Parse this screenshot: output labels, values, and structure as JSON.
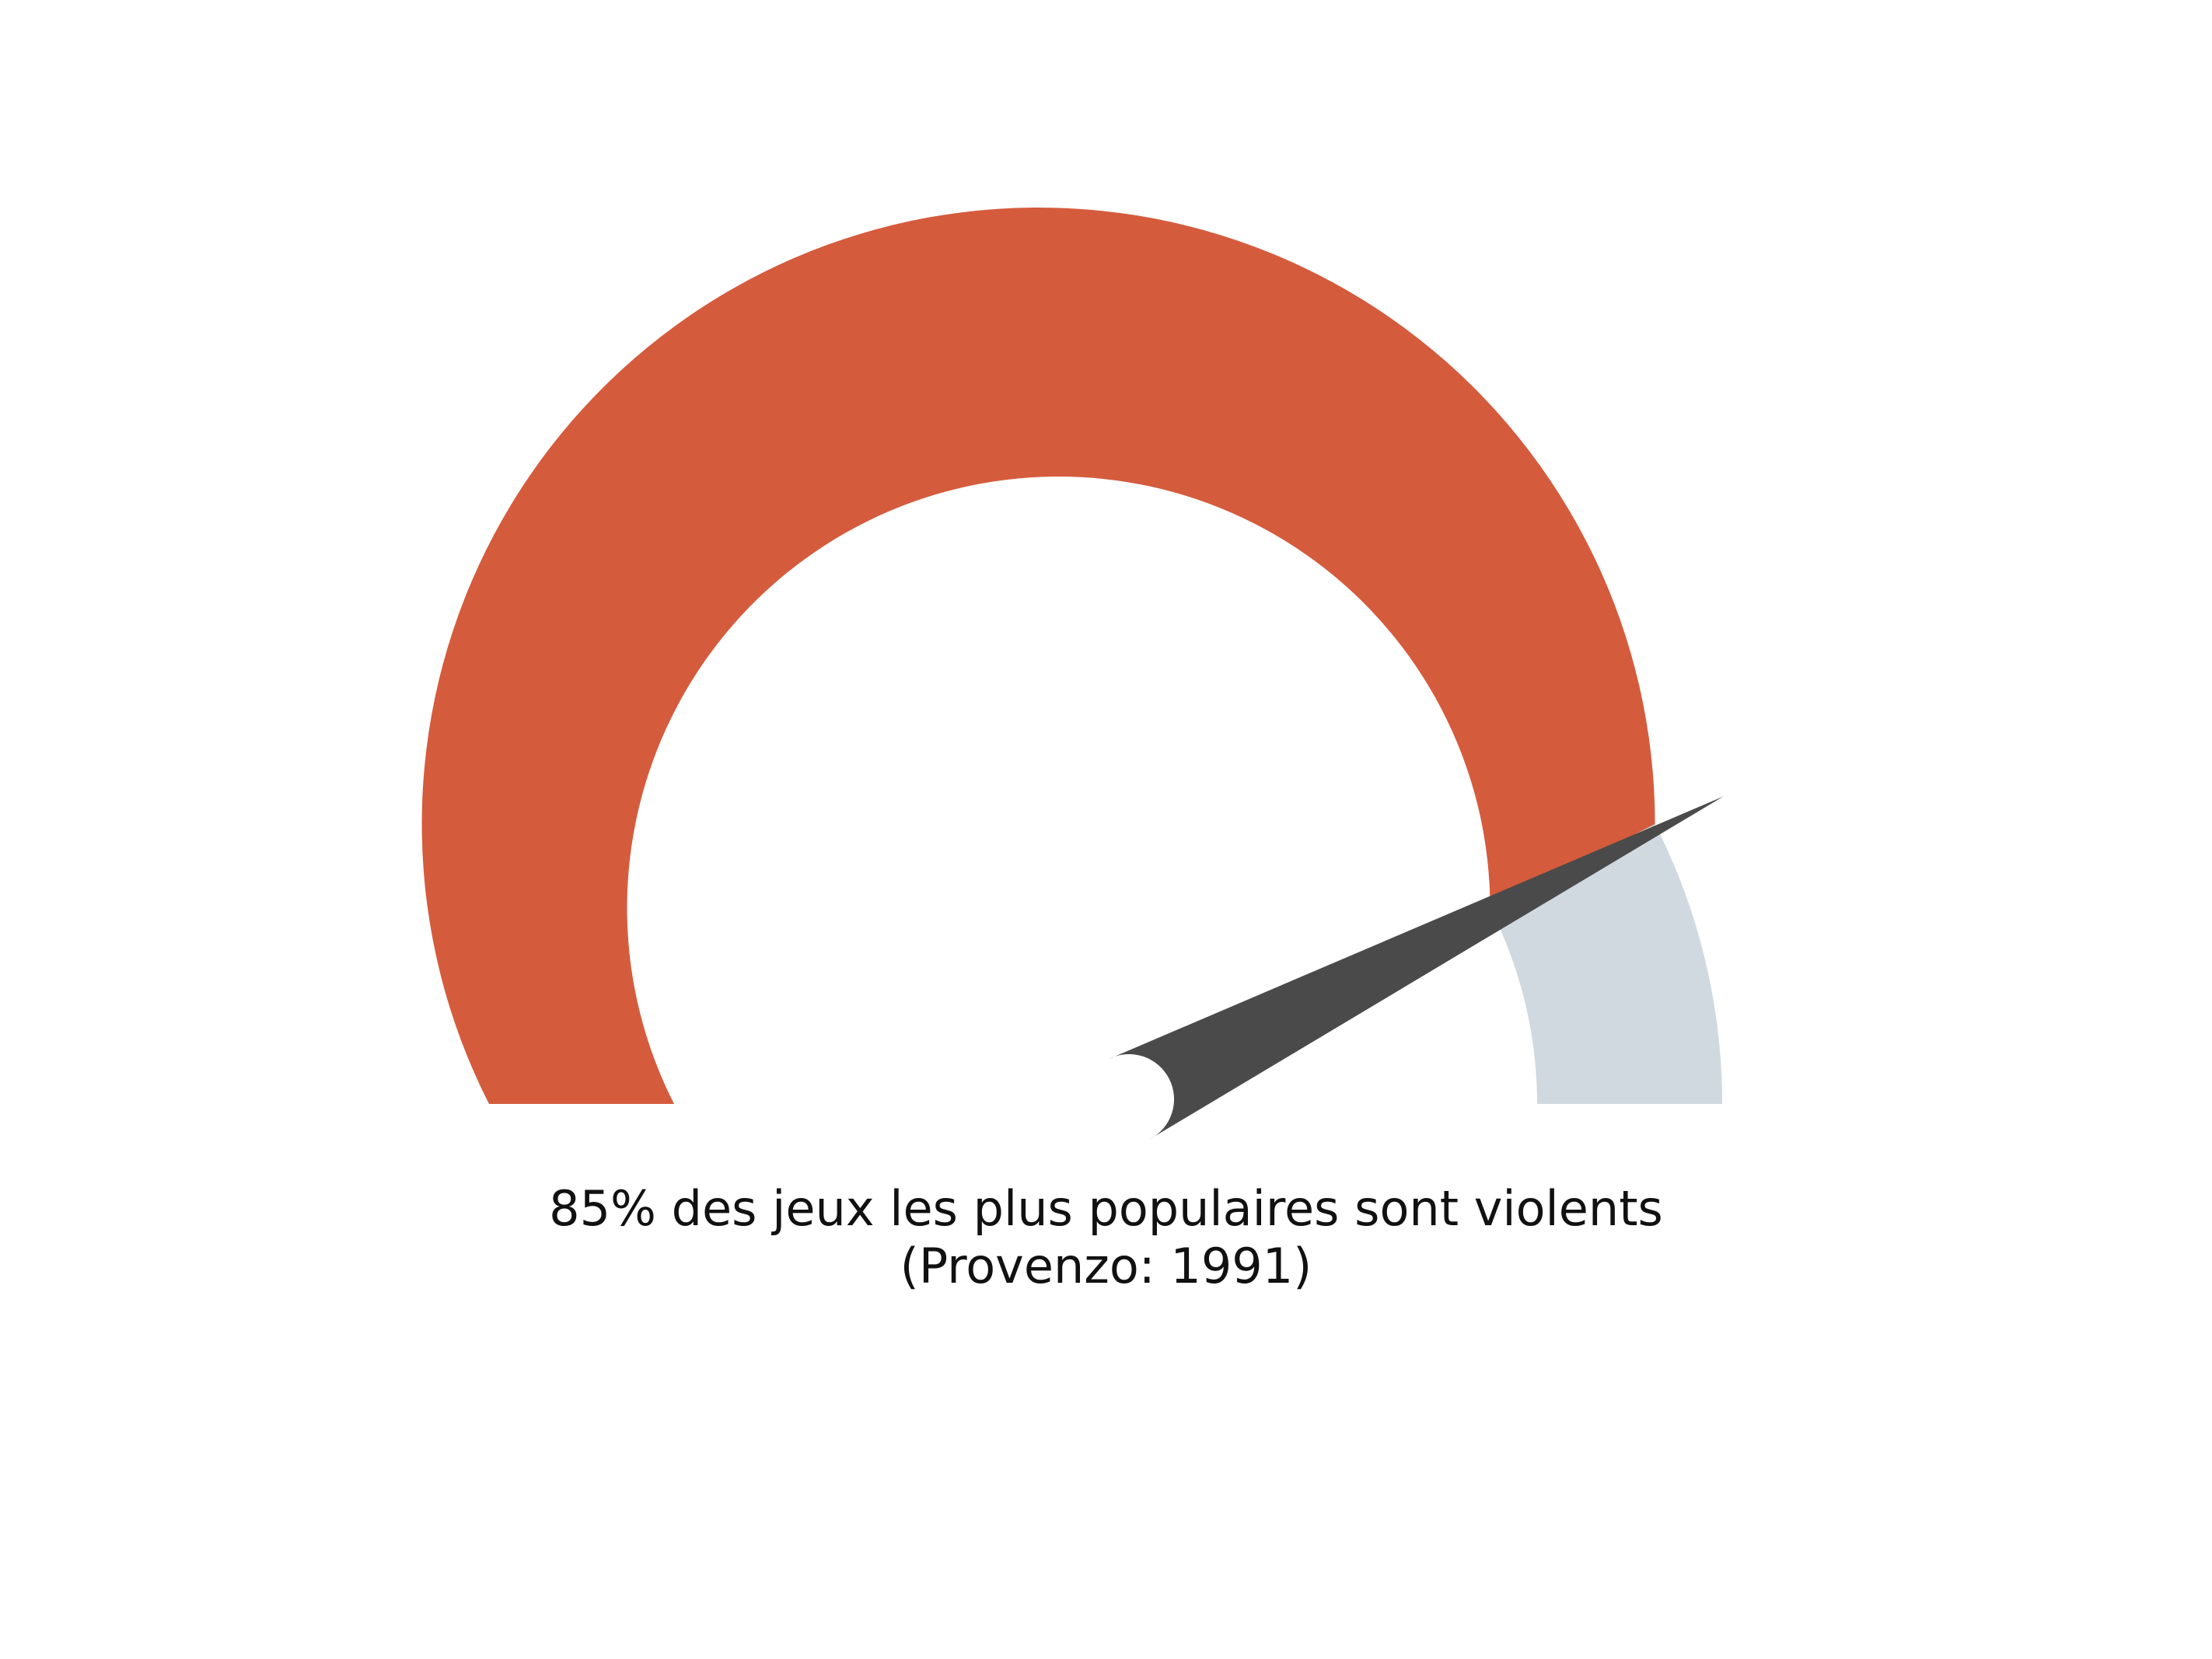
{
  "chart_data": {
    "type": "gauge",
    "value": 85,
    "min": 0,
    "max": 100,
    "unit": "%",
    "colors": {
      "filled": "#d55b3d",
      "remaining": "#d0d8e0",
      "needle": "#4a4a4a"
    }
  },
  "caption": {
    "line1": "85% des jeux les plus populaires sont violents",
    "line2": "(Provenzo: 1991)"
  }
}
